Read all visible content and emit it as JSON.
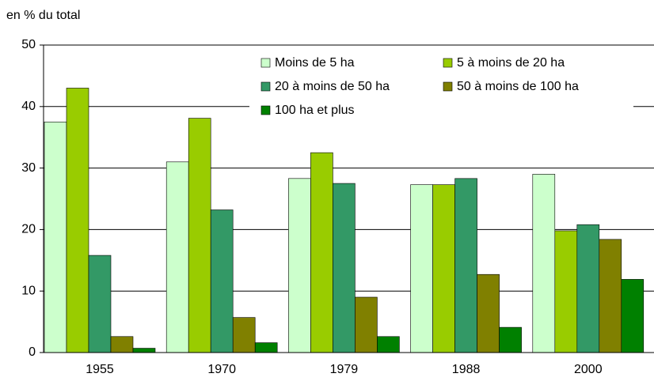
{
  "chart_data": {
    "type": "bar",
    "y_axis_label": "en % du total",
    "categories": [
      "1955",
      "1970",
      "1979",
      "1988",
      "2000"
    ],
    "series": [
      {
        "name": "Moins de 5 ha",
        "color": "#ccffcc",
        "values": [
          37.5,
          31,
          28.3,
          27.3,
          29
        ]
      },
      {
        "name": "5 à moins de 20 ha",
        "color": "#99cc00",
        "values": [
          43,
          38.1,
          32.5,
          27.3,
          19.8
        ]
      },
      {
        "name": "20 à moins de 50 ha",
        "color": "#339966",
        "values": [
          15.8,
          23.2,
          27.5,
          28.3,
          20.8
        ]
      },
      {
        "name": "50 à moins de 100 ha",
        "color": "#808000",
        "values": [
          2.6,
          5.7,
          9,
          12.7,
          18.4
        ]
      },
      {
        "name": "100 ha et plus",
        "color": "#008000",
        "values": [
          0.7,
          1.6,
          2.6,
          4.1,
          11.9
        ]
      }
    ],
    "ylim": [
      0,
      50
    ],
    "yticks": [
      0,
      10,
      20,
      30,
      40,
      50
    ],
    "grid": true,
    "legend": "top-right"
  }
}
